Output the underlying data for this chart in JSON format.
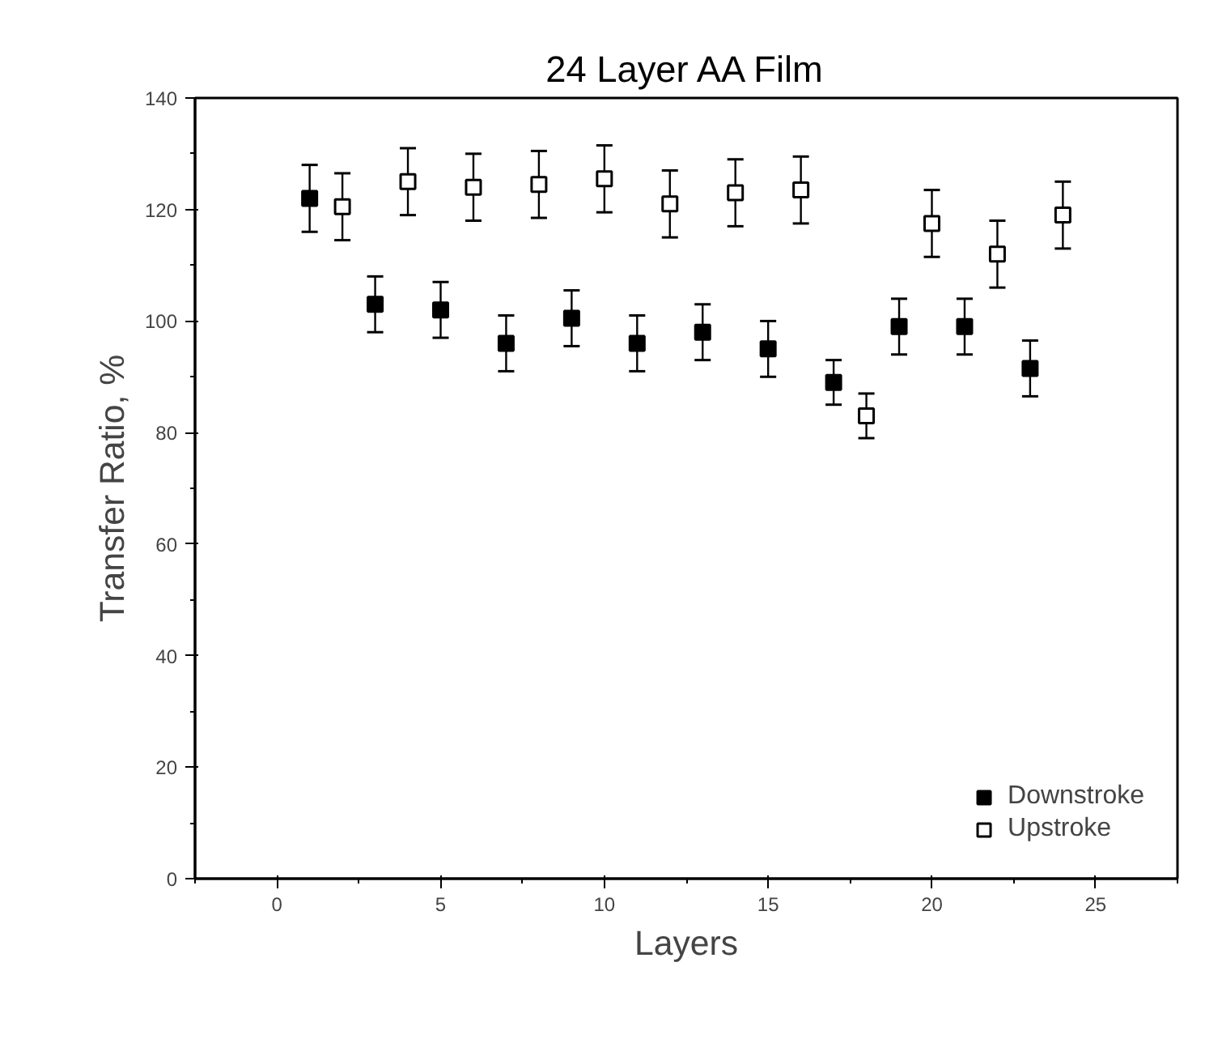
{
  "chart_data": {
    "type": "scatter",
    "title": "24 Layer AA Film",
    "xlabel": "Layers",
    "ylabel": "Transfer Ratio, %",
    "xlim": [
      -2.5,
      27.5
    ],
    "xticks": [
      0,
      5,
      10,
      15,
      20,
      25
    ],
    "ylim": [
      0,
      140
    ],
    "yticks": [
      0,
      20,
      40,
      60,
      80,
      100,
      120,
      140
    ],
    "grid": false,
    "legend": "bottom right",
    "marker": "square",
    "series": [
      {
        "name": "Downstroke",
        "color": "#000000",
        "x": [
          1,
          3,
          5,
          7,
          9,
          11,
          13,
          15,
          17,
          19,
          21,
          23
        ],
        "values": [
          122,
          103,
          102,
          96,
          100.5,
          96,
          98,
          95,
          89,
          99,
          99,
          91.5
        ],
        "errors": [
          6,
          5,
          5,
          5,
          5,
          5,
          5,
          5,
          4,
          5,
          5,
          5
        ]
      },
      {
        "name": "Upstroke",
        "color": "#ffffff",
        "x": [
          2,
          4,
          6,
          8,
          10,
          12,
          14,
          16,
          18,
          20,
          22,
          24
        ],
        "values": [
          120.5,
          125,
          124,
          124.5,
          125.5,
          121,
          123,
          123.5,
          83,
          117.5,
          112,
          119
        ],
        "errors": [
          6,
          6,
          6,
          6,
          6,
          6,
          6,
          6,
          4,
          6,
          6,
          6
        ]
      }
    ]
  }
}
